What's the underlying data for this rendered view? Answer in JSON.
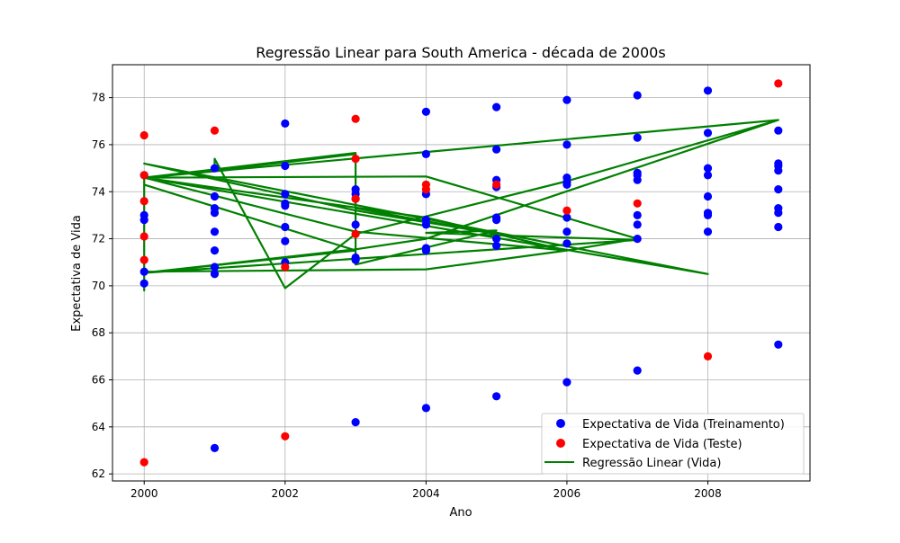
{
  "chart_data": {
    "type": "scatter",
    "title": "Regressão Linear para South America - década de 2000s",
    "xlabel": "Ano",
    "ylabel": "Expectativa de Vida",
    "xlim": [
      1999.55,
      2009.45
    ],
    "ylim": [
      61.7,
      79.4
    ],
    "x_ticks": [
      2000,
      2002,
      2004,
      2006,
      2008
    ],
    "y_ticks": [
      62,
      64,
      66,
      68,
      70,
      72,
      74,
      76,
      78
    ],
    "grid": true,
    "legend_position": "lower-right",
    "colors": {
      "train": "#0000ff",
      "test": "#ff0000",
      "regression": "#008000"
    },
    "series": [
      {
        "name": "Expectativa de Vida (Treinamento)",
        "kind": "scatter",
        "color": "#0000ff",
        "points": [
          [
            2000,
            70.1
          ],
          [
            2000,
            70.6
          ],
          [
            2000,
            72.8
          ],
          [
            2000,
            73.0
          ],
          [
            2000,
            74.7
          ],
          [
            2001,
            63.1
          ],
          [
            2001,
            70.5
          ],
          [
            2001,
            70.8
          ],
          [
            2001,
            71.5
          ],
          [
            2001,
            72.3
          ],
          [
            2001,
            73.1
          ],
          [
            2001,
            73.3
          ],
          [
            2001,
            73.8
          ],
          [
            2001,
            75.0
          ],
          [
            2002,
            71.0
          ],
          [
            2002,
            71.9
          ],
          [
            2002,
            72.5
          ],
          [
            2002,
            73.4
          ],
          [
            2002,
            73.5
          ],
          [
            2002,
            73.9
          ],
          [
            2002,
            75.1
          ],
          [
            2002,
            76.9
          ],
          [
            2003,
            64.2
          ],
          [
            2003,
            71.1
          ],
          [
            2003,
            71.2
          ],
          [
            2003,
            72.6
          ],
          [
            2003,
            73.7
          ],
          [
            2003,
            73.9
          ],
          [
            2003,
            74.1
          ],
          [
            2004,
            64.8
          ],
          [
            2004,
            71.5
          ],
          [
            2004,
            71.6
          ],
          [
            2004,
            72.6
          ],
          [
            2004,
            72.8
          ],
          [
            2004,
            73.9
          ],
          [
            2004,
            75.6
          ],
          [
            2004,
            77.4
          ],
          [
            2005,
            65.3
          ],
          [
            2005,
            71.7
          ],
          [
            2005,
            72.0
          ],
          [
            2005,
            72.8
          ],
          [
            2005,
            72.9
          ],
          [
            2005,
            74.2
          ],
          [
            2005,
            74.5
          ],
          [
            2005,
            75.8
          ],
          [
            2005,
            77.6
          ],
          [
            2006,
            65.9
          ],
          [
            2006,
            71.8
          ],
          [
            2006,
            72.3
          ],
          [
            2006,
            72.9
          ],
          [
            2006,
            74.3
          ],
          [
            2006,
            74.4
          ],
          [
            2006,
            74.6
          ],
          [
            2006,
            76.0
          ],
          [
            2006,
            77.9
          ],
          [
            2007,
            66.4
          ],
          [
            2007,
            72.0
          ],
          [
            2007,
            72.6
          ],
          [
            2007,
            73.0
          ],
          [
            2007,
            74.5
          ],
          [
            2007,
            74.7
          ],
          [
            2007,
            74.8
          ],
          [
            2007,
            76.3
          ],
          [
            2007,
            78.1
          ],
          [
            2008,
            72.3
          ],
          [
            2008,
            73.0
          ],
          [
            2008,
            73.1
          ],
          [
            2008,
            73.8
          ],
          [
            2008,
            74.7
          ],
          [
            2008,
            75.0
          ],
          [
            2008,
            76.5
          ],
          [
            2008,
            78.3
          ],
          [
            2009,
            67.5
          ],
          [
            2009,
            72.5
          ],
          [
            2009,
            73.1
          ],
          [
            2009,
            73.3
          ],
          [
            2009,
            74.1
          ],
          [
            2009,
            74.9
          ],
          [
            2009,
            75.1
          ],
          [
            2009,
            75.2
          ],
          [
            2009,
            76.6
          ]
        ]
      },
      {
        "name": "Expectativa de Vida (Teste)",
        "kind": "scatter",
        "color": "#ff0000",
        "points": [
          [
            2000,
            62.5
          ],
          [
            2000,
            71.1
          ],
          [
            2000,
            72.1
          ],
          [
            2000,
            73.6
          ],
          [
            2000,
            74.7
          ],
          [
            2000,
            76.4
          ],
          [
            2001,
            76.6
          ],
          [
            2002,
            63.6
          ],
          [
            2002,
            70.8
          ],
          [
            2003,
            72.2
          ],
          [
            2003,
            73.7
          ],
          [
            2003,
            75.4
          ],
          [
            2003,
            77.1
          ],
          [
            2004,
            74.1
          ],
          [
            2004,
            74.3
          ],
          [
            2005,
            74.3
          ],
          [
            2006,
            73.2
          ],
          [
            2007,
            73.5
          ],
          [
            2008,
            67.0
          ],
          [
            2009,
            78.6
          ]
        ]
      },
      {
        "name": "Regressão Linear (Vida)",
        "kind": "line",
        "color": "#008000",
        "points": [
          [
            2000,
            70.55
          ],
          [
            2007,
            71.95
          ],
          [
            2004,
            72.25
          ],
          [
            2005,
            72.35
          ],
          [
            2003,
            70.9
          ],
          [
            2003,
            75.65
          ],
          [
            2000,
            74.6
          ],
          [
            2004,
            74.65
          ],
          [
            2007,
            72.0
          ],
          [
            2006,
            71.5
          ],
          [
            2003,
            72.3
          ],
          [
            2000,
            74.6
          ],
          [
            2008,
            70.5
          ],
          [
            2000,
            75.2
          ],
          [
            2003,
            73.2
          ],
          [
            2005,
            72.2
          ],
          [
            2003,
            73.3
          ],
          [
            2003,
            75.6
          ],
          [
            2002,
            75.25
          ],
          [
            2000,
            74.6
          ],
          [
            2009,
            77.05
          ],
          [
            2006,
            74.45
          ],
          [
            2003,
            72.2
          ],
          [
            2002,
            69.9
          ],
          [
            2001,
            75.4
          ],
          [
            2001,
            74.9
          ],
          [
            2000,
            74.6
          ],
          [
            2000,
            69.8
          ],
          [
            2000,
            70.6
          ],
          [
            2004,
            70.7
          ],
          [
            2006,
            71.5
          ],
          [
            2004,
            72.9
          ],
          [
            2000,
            74.6
          ],
          [
            2000,
            74.3
          ],
          [
            2003,
            71.5
          ],
          [
            2000,
            70.55
          ],
          [
            2003,
            71.55
          ],
          [
            2004,
            72.0
          ],
          [
            2009,
            77.05
          ]
        ]
      }
    ]
  }
}
